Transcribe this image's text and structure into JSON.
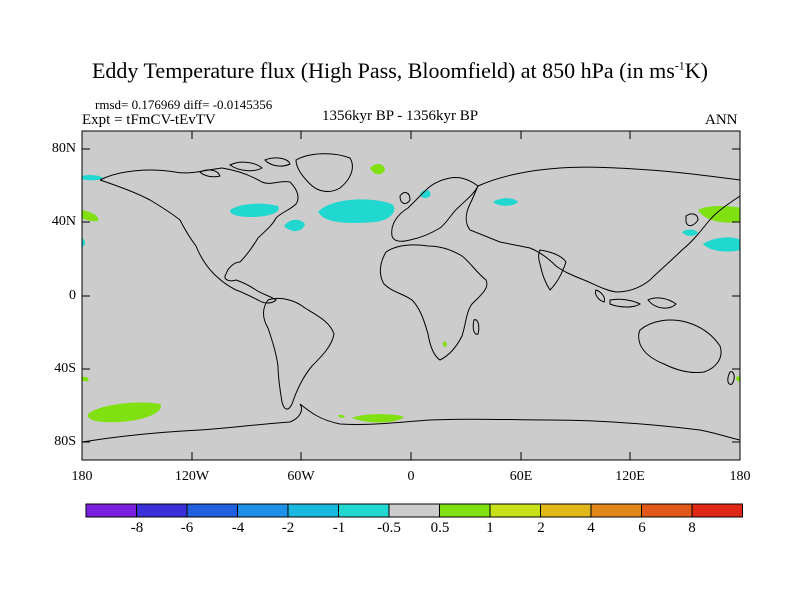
{
  "title": {
    "main": "Eddy Temperature flux (High Pass, Bloomfield) at 850 hPa (in ms",
    "exponent": "-1",
    "suffix": "K)"
  },
  "stats": "rmsd= 0.176969 diff= -0.0145356",
  "experiment": "Expt = tFmCV-tEvTV",
  "period": "1356kyr BP - 1356kyr BP",
  "season": "ANN",
  "lat_labels": [
    "80N",
    "40N",
    "0",
    "40S",
    "80S"
  ],
  "lon_labels": [
    "180",
    "120W",
    "60W",
    "0",
    "60E",
    "120E",
    "180"
  ],
  "colorbar": {
    "labels": [
      "-8",
      "-6",
      "-4",
      "-2",
      "-1",
      "-0.5",
      "0.5",
      "1",
      "2",
      "4",
      "6",
      "8"
    ],
    "colors": [
      "#7b1fe0",
      "#3a2fd8",
      "#1f5fe0",
      "#1f8fe8",
      "#18b8e0",
      "#20d8d0",
      "#cccccc",
      "#80e010",
      "#c8e018",
      "#e0b818",
      "#e08818",
      "#e05818",
      "#e02818"
    ]
  },
  "map": {
    "ocean_land_fill": "#cccccc",
    "positive_color": "#80e010",
    "negative_color": "#20d8d0"
  }
}
